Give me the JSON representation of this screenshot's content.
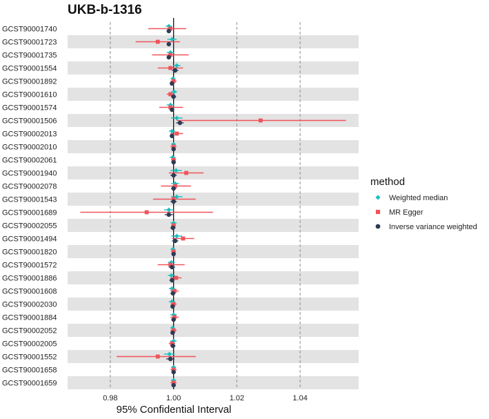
{
  "colors": {
    "weighted_median": "#1FBFBF",
    "mr_egger": "#F0535A",
    "ivw": "#2E3B55",
    "stripe": "#E3E3E3",
    "grid": "#8A8A8A"
  },
  "legend": {
    "title": "method",
    "items": [
      {
        "label": "Weighted median",
        "color": "#1FBFBF",
        "shape": "diamond"
      },
      {
        "label": "MR Egger",
        "color": "#F0535A",
        "shape": "square"
      },
      {
        "label": "Inverse variance weighted",
        "color": "#2E3B55",
        "shape": "circle"
      }
    ]
  },
  "chart_data": {
    "type": "forest",
    "title": "UKB-b-1316",
    "xlabel": "95% Confidential Interval",
    "ylabel": "",
    "xlim": [
      0.9665,
      1.0585
    ],
    "xticks": [
      0.98,
      1.0,
      1.02,
      1.04
    ],
    "xtick_labels": [
      "0.98",
      "1.00",
      "1.02",
      "1.04"
    ],
    "reference_line": 1.0,
    "grid": "dashed vertical",
    "legend_position": "right",
    "categories": [
      "GCST90001740",
      "GCST90001723",
      "GCST90001735",
      "GCST90001554",
      "GCST90001892",
      "GCST90001610",
      "GCST90001574",
      "GCST90001506",
      "GCST90002013",
      "GCST90002010",
      "GCST90002061",
      "GCST90001940",
      "GCST90002078",
      "GCST90001543",
      "GCST90001689",
      "GCST90002055",
      "GCST90001494",
      "GCST90001820",
      "GCST90001572",
      "GCST90001886",
      "GCST90001608",
      "GCST90002030",
      "GCST90001884",
      "GCST90002052",
      "GCST90002005",
      "GCST90001552",
      "GCST90001658",
      "GCST90001659"
    ],
    "series": [
      {
        "name": "Weighted median",
        "estimates": [
          0.9985,
          0.9995,
          0.999,
          1.001,
          0.9998,
          1.0002,
          0.999,
          1.001,
          0.9995,
          1.0,
          0.9997,
          1.0008,
          1.0005,
          1.001,
          0.9985,
          1.0,
          1.001,
          0.9998,
          0.9993,
          0.9993,
          0.9995,
          0.9995,
          1.0,
          0.9997,
          1.0,
          0.9987,
          1.0,
          1.0
        ],
        "lower": [
          0.9975,
          0.998,
          0.9978,
          0.9998,
          0.999,
          0.9992,
          0.9978,
          0.9992,
          0.9985,
          0.9992,
          0.9988,
          0.999,
          0.9992,
          0.9992,
          0.997,
          0.999,
          0.9993,
          0.999,
          0.9982,
          0.9982,
          0.9985,
          0.9985,
          0.999,
          0.999,
          0.999,
          0.997,
          0.9992,
          0.9992
        ],
        "upper": [
          0.9995,
          1.001,
          1.0002,
          1.0022,
          1.0006,
          1.0012,
          1.0002,
          1.0028,
          1.0005,
          1.0008,
          1.0006,
          1.0026,
          1.0018,
          1.0028,
          1.0,
          1.001,
          1.0027,
          1.0006,
          1.0004,
          1.0004,
          1.0005,
          1.0005,
          1.001,
          1.0004,
          1.001,
          1.0004,
          1.0008,
          1.0008
        ]
      },
      {
        "name": "MR Egger",
        "estimates": [
          0.999,
          0.995,
          0.999,
          0.999,
          1.0,
          0.999,
          0.999,
          1.0275,
          1.001,
          1.0,
          1.0,
          1.004,
          1.0005,
          1.0,
          0.9915,
          1.0,
          1.003,
          1.0,
          0.999,
          1.0008,
          1.0003,
          1.0,
          1.0003,
          1.0,
          0.9995,
          0.995,
          1.0,
          1.0
        ],
        "lower": [
          0.992,
          0.988,
          0.9932,
          0.995,
          0.999,
          0.9978,
          0.9955,
          1.001,
          0.999,
          0.999,
          0.9992,
          0.9985,
          0.996,
          0.9935,
          0.9705,
          0.9992,
          0.9995,
          0.9992,
          0.995,
          0.999,
          0.999,
          0.999,
          0.999,
          0.999,
          0.9985,
          0.982,
          0.999,
          0.999
        ],
        "upper": [
          1.004,
          1.002,
          1.0048,
          1.003,
          1.001,
          1.0003,
          1.003,
          1.0545,
          1.003,
          1.001,
          1.0008,
          1.0095,
          1.0055,
          1.007,
          1.0125,
          1.0008,
          1.0065,
          1.0008,
          1.0035,
          1.0025,
          1.0016,
          1.001,
          1.0016,
          1.001,
          1.0005,
          1.007,
          1.001,
          1.001
        ]
      },
      {
        "name": "Inverse variance weighted",
        "estimates": [
          0.9985,
          0.9985,
          0.9985,
          1.0005,
          0.9995,
          1.0,
          0.9995,
          1.002,
          0.9995,
          1.0,
          1.0,
          1.0,
          1.0,
          1.0,
          0.9985,
          0.9998,
          1.0005,
          1.0,
          0.9995,
          0.9995,
          0.9998,
          0.9997,
          1.0,
          0.9997,
          0.9998,
          0.999,
          1.0,
          1.0
        ],
        "lower": [
          0.9978,
          0.9978,
          0.9978,
          0.9995,
          0.9988,
          0.9992,
          0.9988,
          1.0008,
          0.9988,
          0.9993,
          0.9993,
          0.999,
          0.9992,
          0.999,
          0.9972,
          0.999,
          0.9995,
          0.9993,
          0.9985,
          0.9987,
          0.999,
          0.999,
          0.9993,
          0.999,
          0.999,
          0.9977,
          0.9993,
          0.9993
        ],
        "upper": [
          0.9992,
          0.9992,
          0.9992,
          1.0015,
          1.0002,
          1.0008,
          1.0002,
          1.0032,
          1.0002,
          1.0007,
          1.0007,
          1.001,
          1.0008,
          1.001,
          0.9998,
          1.0006,
          1.0015,
          1.0007,
          1.0005,
          1.0003,
          1.0006,
          1.0004,
          1.0007,
          1.0004,
          1.0006,
          1.0003,
          1.0007,
          1.0007
        ]
      }
    ]
  }
}
